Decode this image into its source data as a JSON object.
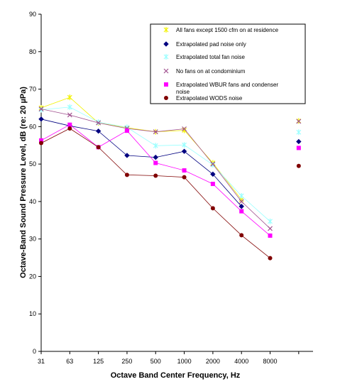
{
  "chart_data": {
    "type": "line",
    "title": "",
    "xlabel": "Octave Band Center Frequency, Hz",
    "ylabel": "Octave-Band Sound Pressure Level, dB (re: 20 µPa)",
    "ylim": [
      0,
      90
    ],
    "yticks": [
      "0",
      "10",
      "20",
      "30",
      "40",
      "50",
      "60",
      "70",
      "80",
      "90"
    ],
    "categories": [
      "31",
      "63",
      "125",
      "250",
      "500",
      "1000",
      "2000",
      "4000",
      "8000",
      ""
    ],
    "grid": false,
    "legend_position": "top-right",
    "series": [
      {
        "name": "All fans except 1500 cfm on at residence",
        "color": "#f2f200",
        "marker": "star",
        "values": [
          65,
          67.8,
          61,
          59.7,
          58.6,
          59,
          50.3,
          40.5,
          null,
          61.5
        ]
      },
      {
        "name": "Extrapolated pad noise only",
        "color": "#000080",
        "marker": "diamond",
        "values": [
          62,
          60.2,
          58.8,
          52.3,
          51.8,
          53.4,
          47.3,
          38.7,
          null,
          56
        ]
      },
      {
        "name": "Extrapolated total fan noise",
        "color": "#99ffff",
        "marker": "star",
        "values": [
          64.5,
          65.2,
          61.2,
          59.8,
          54.9,
          55.1,
          49.8,
          41.5,
          34.7,
          58.5
        ]
      },
      {
        "name": "No fans on at condominium",
        "color": "#a0508f",
        "marker": "cross",
        "values": [
          64.7,
          63.1,
          61,
          59.5,
          58.6,
          59.4,
          50,
          40,
          32.8,
          61.4
        ]
      },
      {
        "name": "Extrapolated WBUR fans and condenser noise",
        "color": "#ff00ff",
        "marker": "square",
        "values": [
          56.3,
          60.5,
          54.5,
          58.9,
          50.3,
          48.3,
          44.7,
          37.4,
          30.9,
          54.3
        ]
      },
      {
        "name": "Extrapolated WODS noise",
        "color": "#800000",
        "marker": "circle",
        "values": [
          55.6,
          59.5,
          54.5,
          47.1,
          46.9,
          46.5,
          38.2,
          31,
          24.9,
          49.5
        ]
      }
    ]
  }
}
